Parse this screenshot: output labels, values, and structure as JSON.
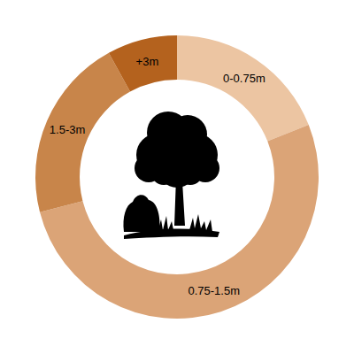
{
  "chart_data": {
    "type": "pie",
    "categories": [
      "0-0.75m",
      "0.75-1.5m",
      "1.5-3m",
      "+3m"
    ],
    "values": [
      19,
      52,
      21,
      8
    ],
    "colors": [
      "#ecc5a2",
      "#dba477",
      "#c8854a",
      "#b4621e"
    ]
  }
}
